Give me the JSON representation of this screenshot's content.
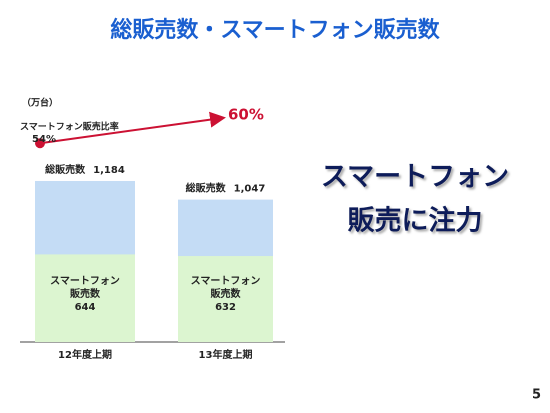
{
  "chart_data": {
    "type": "bar",
    "title": "総販売数・スマートフォン販売数",
    "unit": "（万台）",
    "categories": [
      "12年度上期",
      "13年度上期"
    ],
    "series": [
      {
        "name": "総販売数",
        "color": "#c4dcf5",
        "values": [
          1184,
          1047
        ],
        "value_labels": [
          "1,184",
          "1,047"
        ]
      },
      {
        "name": [
          "スマートフォン",
          "販売数"
        ],
        "color": "#dcf5d0",
        "values": [
          644,
          632
        ]
      }
    ],
    "ratio": {
      "name": "スマートフォン販売比率",
      "color": "#cc1133",
      "values": [
        54,
        60
      ],
      "value_labels": [
        "54%",
        "60%"
      ]
    },
    "headline": [
      "スマートフォン",
      "販売に注力"
    ],
    "page_number": "5"
  }
}
